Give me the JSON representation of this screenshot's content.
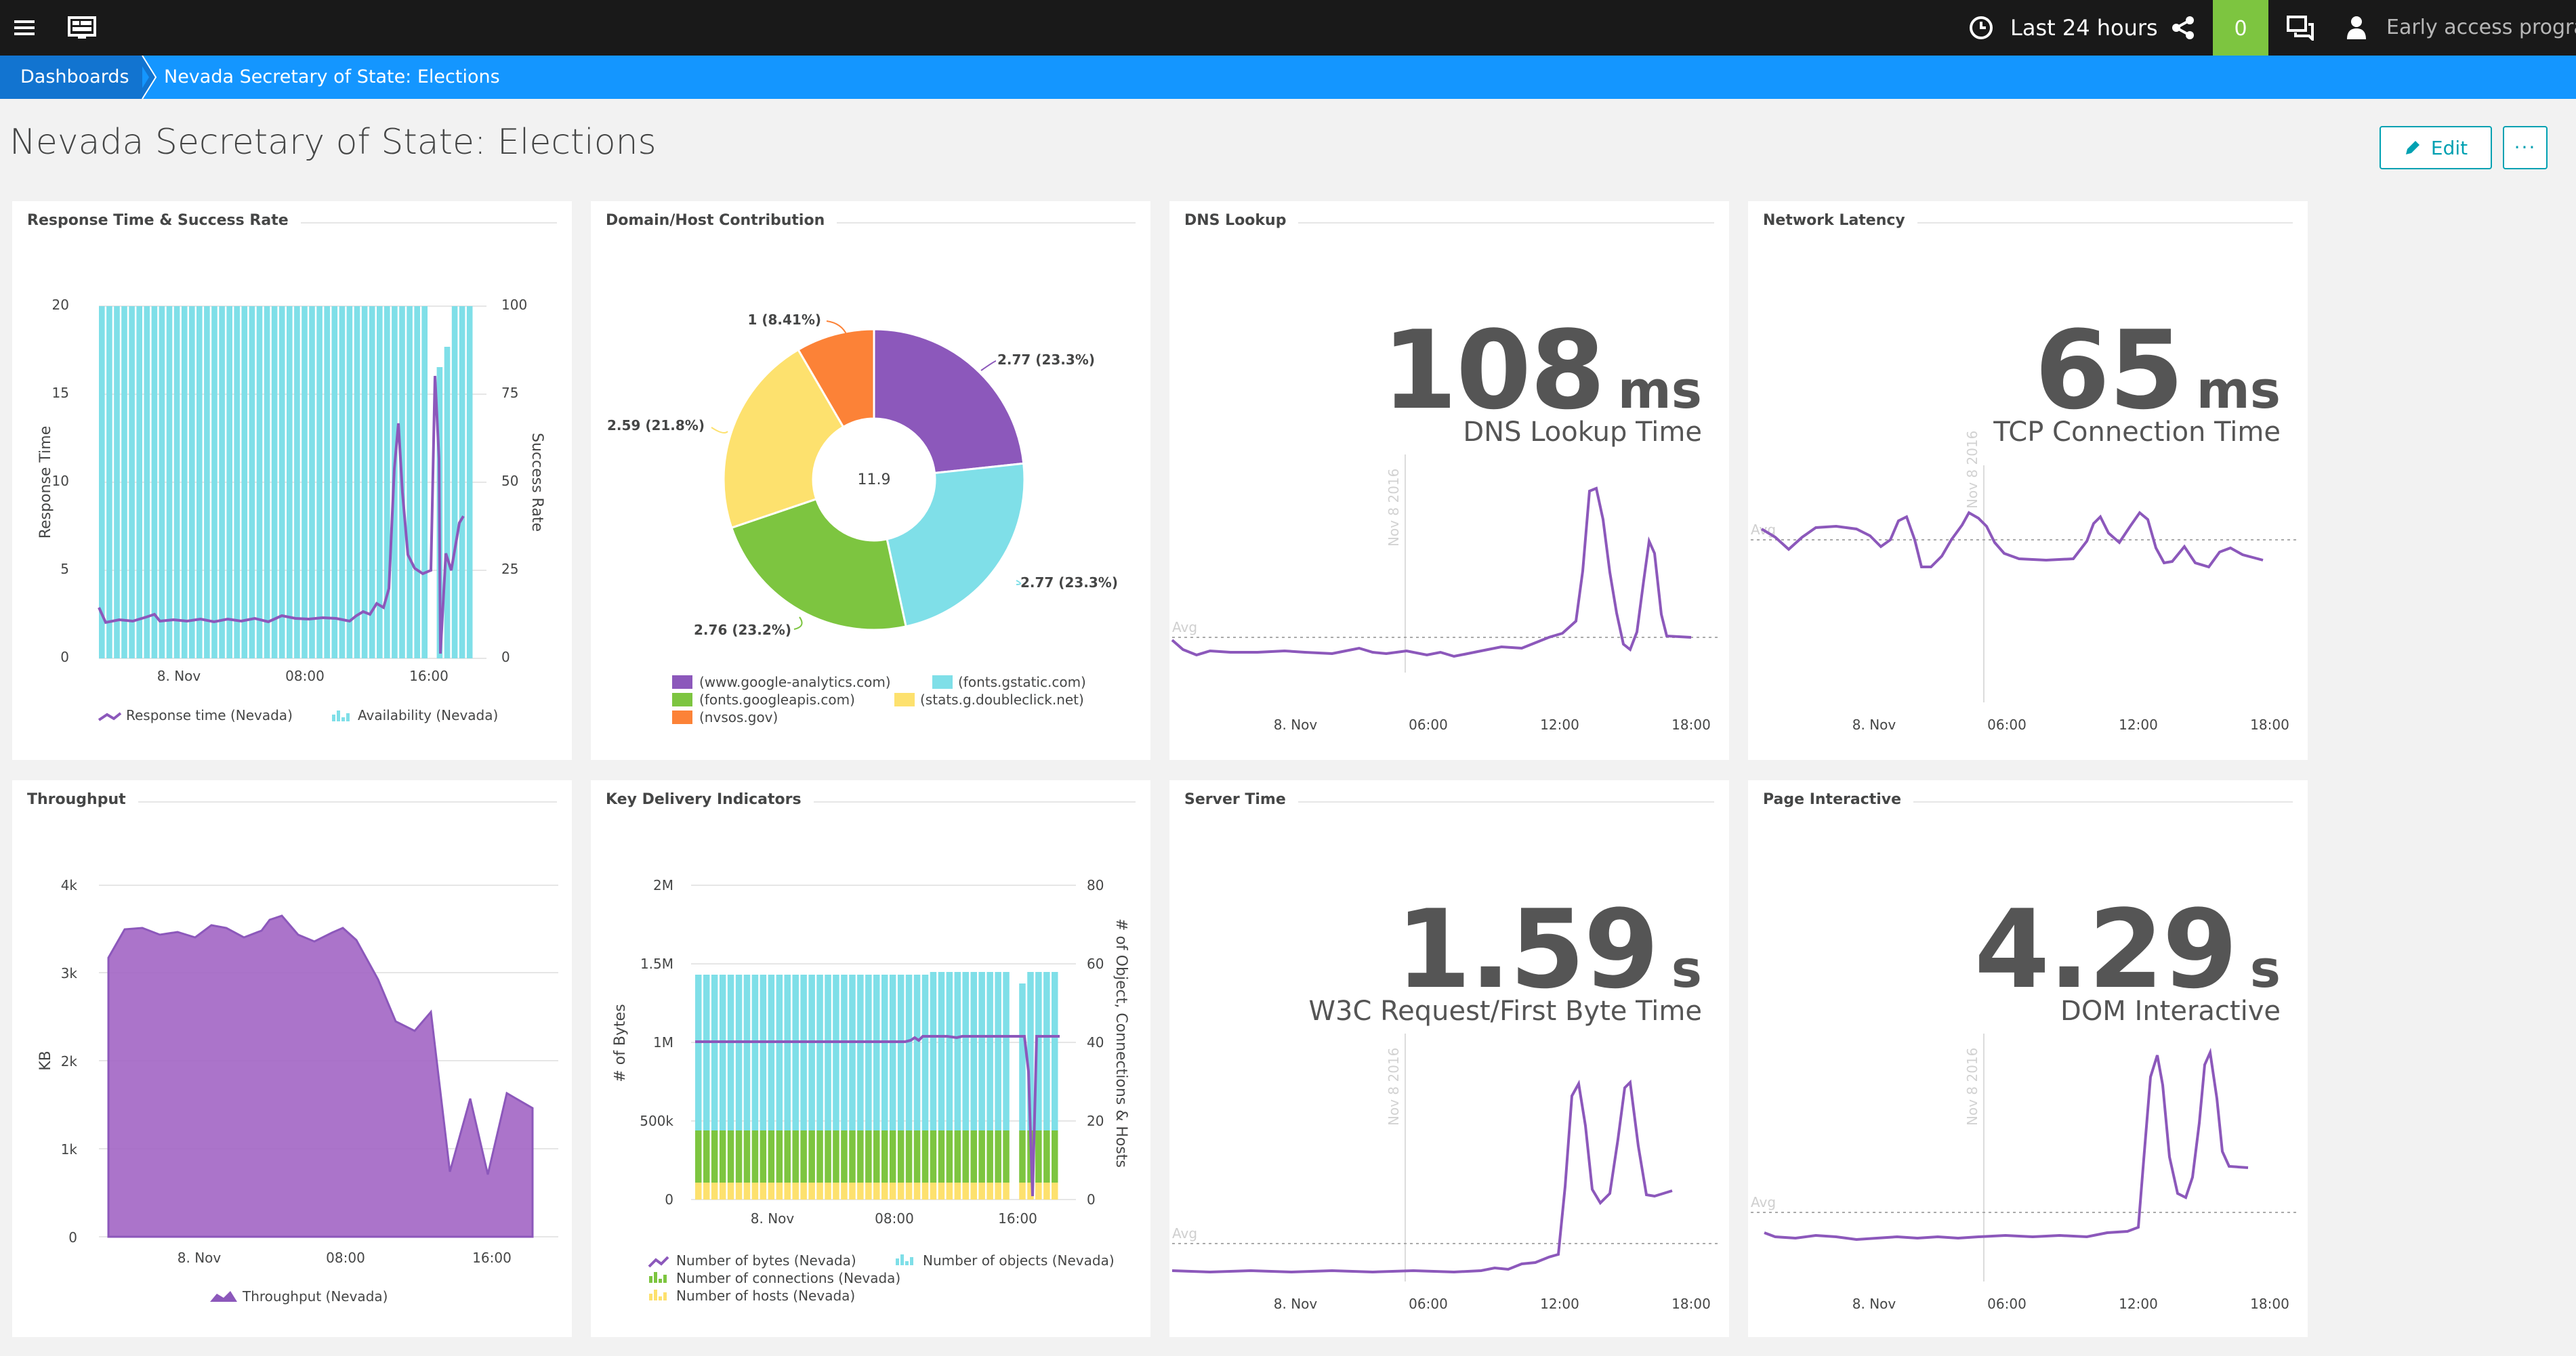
{
  "topbar": {
    "timeframe": "Last 24 hours",
    "problems_count": "0",
    "user_label": "Early access program"
  },
  "breadcrumb": {
    "root": "Dashboards",
    "current": "Nevada Secretary of State: Elections"
  },
  "page": {
    "title": "Nevada Secretary of State: Elections",
    "edit_label": "Edit",
    "more_label": "···"
  },
  "colors": {
    "purple": "#8c58bb",
    "cyan": "#7fdfe8",
    "green": "#7dc540",
    "yellow": "#fde16e",
    "orange": "#fc8237",
    "accent": "#1496ff",
    "problem": "#7dc540"
  },
  "tiles": {
    "response": {
      "title": "Response Time & Success Rate",
      "ylabel": "Response Time",
      "y2label": "Success Rate",
      "yticks": [
        "20",
        "15",
        "10",
        "5",
        "0"
      ],
      "y2ticks": [
        "100",
        "75",
        "50",
        "25",
        "0"
      ],
      "xticks": [
        "8. Nov",
        "08:00",
        "16:00"
      ],
      "legend1": "Response time (Nevada)",
      "legend2": "Availability (Nevada)"
    },
    "domain": {
      "title": "Domain/Host Contribution",
      "center": "11.9",
      "labels": [
        "2.77 (23.3%)",
        "2.77 (23.3%)",
        "2.76 (23.2%)",
        "2.59 (21.8%)",
        "1 (8.41%)"
      ],
      "legend": [
        "(www.google-analytics.com)",
        "(fonts.gstatic.com)",
        "(fonts.googleapis.com)",
        "(stats.g.doubleclick.net)",
        "(nvsos.gov)"
      ]
    },
    "dns": {
      "title": "DNS Lookup",
      "value": "108",
      "unit": "ms",
      "label": "DNS Lookup Time",
      "avg": "Avg",
      "marker": "Nov 8 2016",
      "xticks": [
        "8. Nov",
        "06:00",
        "12:00",
        "18:00"
      ]
    },
    "latency": {
      "title": "Network Latency",
      "value": "65",
      "unit": "ms",
      "label": "TCP Connection Time",
      "avg": "Avg",
      "marker": "Nov 8 2016",
      "xticks": [
        "8. Nov",
        "06:00",
        "12:00",
        "18:00"
      ]
    },
    "throughput": {
      "title": "Throughput",
      "ylabel": "KB",
      "yticks": [
        "4k",
        "3k",
        "2k",
        "1k",
        "0"
      ],
      "xticks": [
        "8. Nov",
        "08:00",
        "16:00"
      ],
      "legend": "Throughput (Nevada)"
    },
    "kdi": {
      "title": "Key Delivery Indicators",
      "ylabel": "# of Bytes",
      "y2label": "# of Object, Connections & Hosts",
      "yticks": [
        "2M",
        "1.5M",
        "1M",
        "500k",
        "0"
      ],
      "y2ticks": [
        "80",
        "60",
        "40",
        "20",
        "0"
      ],
      "xticks": [
        "8. Nov",
        "08:00",
        "16:00"
      ],
      "legend1": "Number of bytes (Nevada)",
      "legend2": "Number of objects (Nevada)",
      "legend3": "Number of connections (Nevada)",
      "legend4": "Number of hosts (Nevada)"
    },
    "server": {
      "title": "Server Time",
      "value": "1.59",
      "unit": "s",
      "label": "W3C Request/First Byte Time",
      "avg": "Avg",
      "marker": "Nov 8 2016",
      "xticks": [
        "8. Nov",
        "06:00",
        "12:00",
        "18:00"
      ]
    },
    "interactive": {
      "title": "Page Interactive",
      "value": "4.29",
      "unit": "s",
      "label": "DOM Interactive",
      "avg": "Avg",
      "marker": "Nov 8 2016",
      "xticks": [
        "8. Nov",
        "06:00",
        "12:00",
        "18:00"
      ]
    }
  }
}
